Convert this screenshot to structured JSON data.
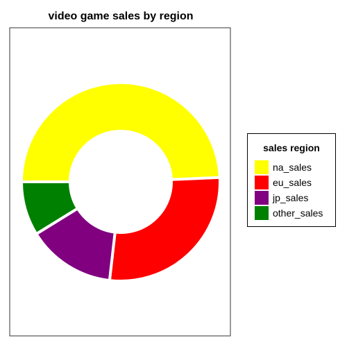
{
  "chart_data": {
    "type": "pie",
    "variant": "donut",
    "title": "video game sales by region",
    "legend_title": "sales region",
    "legend_position": "right",
    "categories": [
      "na_sales",
      "eu_sales",
      "jp_sales",
      "other_sales"
    ],
    "values": [
      0.493,
      0.275,
      0.144,
      0.088
    ],
    "colors": [
      "#ffff00",
      "#ff0000",
      "#800080",
      "#008000"
    ]
  }
}
